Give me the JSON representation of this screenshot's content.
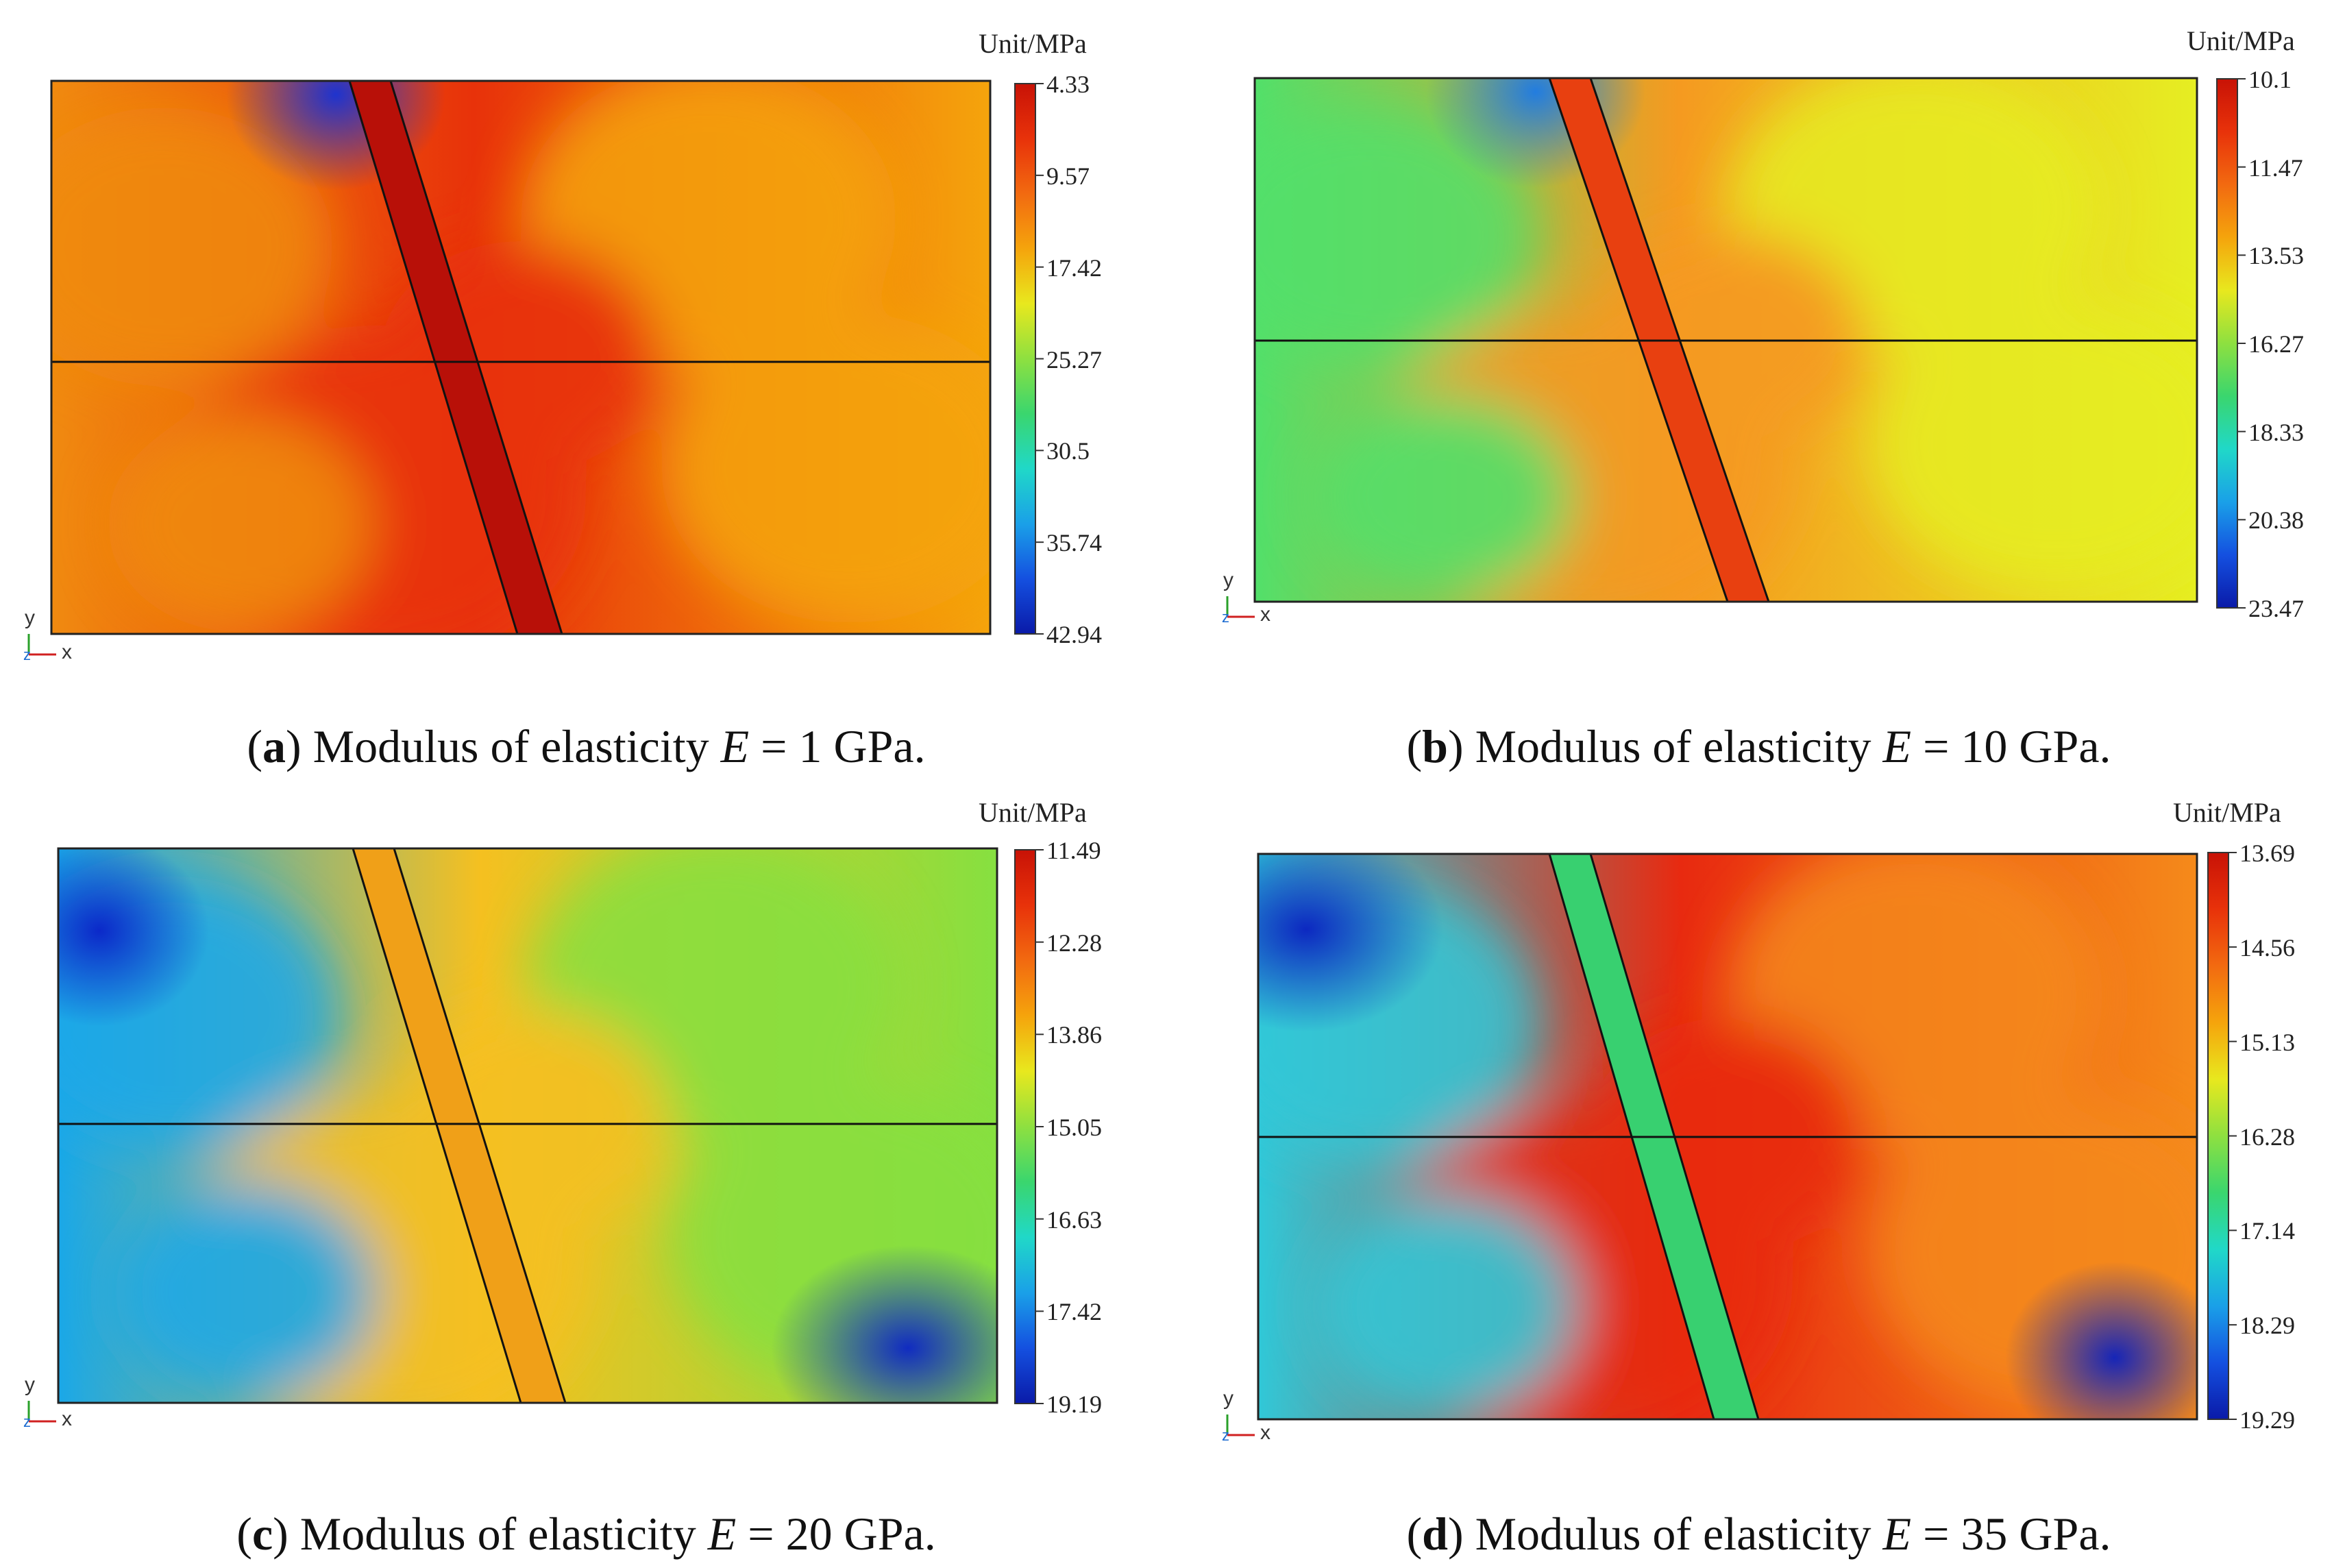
{
  "figure": {
    "panels": [
      {
        "id": "a",
        "letter": "a",
        "caption_prefix": "Modulus of elasticity ",
        "caption_var": "E",
        "caption_suffix": " = 1 GPa.",
        "unit": "Unit/MPa",
        "colorbar_ticks": [
          "4.33",
          "9.57",
          "17.42",
          "25.27",
          "30.5",
          "35.74",
          "42.94"
        ],
        "axis_labels": {
          "y": "y",
          "x": "x",
          "z": "z"
        },
        "colors": {
          "left": "#f08a10",
          "center": "#e8320a",
          "right": "#f5a40c",
          "band": "#b81008",
          "corner": "#1432d8"
        }
      },
      {
        "id": "b",
        "letter": "b",
        "caption_prefix": "Modulus of elasticity ",
        "caption_var": "E",
        "caption_suffix": " = 10 GPa.",
        "unit": "Unit/MPa",
        "colorbar_ticks": [
          "10.1",
          "11.47",
          "13.53",
          "16.27",
          "18.33",
          "20.38",
          "23.47"
        ],
        "axis_labels": {
          "y": "y",
          "x": "x",
          "z": "z"
        },
        "colors": {
          "left": "#52e06a",
          "center": "#f59a20",
          "right": "#e6ee22",
          "band": "#e84010",
          "corner": "#1a7ae8"
        }
      },
      {
        "id": "c",
        "letter": "c",
        "caption_prefix": "Modulus of elasticity ",
        "caption_var": "E",
        "caption_suffix": " = 20 GPa.",
        "unit": "Unit/MPa",
        "colorbar_ticks": [
          "11.49",
          "12.28",
          "13.86",
          "15.05",
          "16.63",
          "17.42",
          "19.19"
        ],
        "axis_labels": {
          "y": "y",
          "x": "x",
          "z": "z"
        },
        "colors": {
          "left": "#1aa8e8",
          "center": "#f5c020",
          "right": "#86e040",
          "band": "#f0a018",
          "corner": "#0a22c8"
        }
      },
      {
        "id": "d",
        "letter": "d",
        "caption_prefix": "Modulus of elasticity ",
        "caption_var": "E",
        "caption_suffix": " = 35 GPa.",
        "unit": "Unit/MPa",
        "colorbar_ticks": [
          "13.69",
          "14.56",
          "15.13",
          "16.28",
          "17.14",
          "18.29",
          "19.29"
        ],
        "axis_labels": {
          "y": "y",
          "x": "x",
          "z": "z"
        },
        "colors": {
          "left": "#30c8d8",
          "center": "#e82a10",
          "right": "#f58a1a",
          "band": "#38d070",
          "corner": "#0a20c0"
        }
      }
    ]
  }
}
